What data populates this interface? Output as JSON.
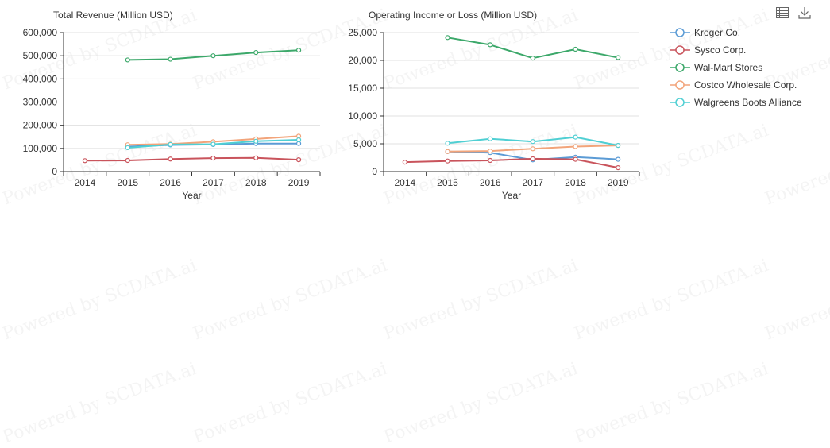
{
  "watermark": "Powered by SCDATA.ai",
  "toolbar": {
    "icons": [
      "data-view-icon",
      "download-icon"
    ]
  },
  "legend": [
    {
      "label": "Kroger Co.",
      "color": "#5b9bd5"
    },
    {
      "label": "Sysco Corp.",
      "color": "#c9545c"
    },
    {
      "label": "Wal-Mart Stores",
      "color": "#3ca86a"
    },
    {
      "label": "Costco Wholesale Corp.",
      "color": "#f2a47a"
    },
    {
      "label": "Walgreens Boots Alliance",
      "color": "#4fcfd3"
    }
  ],
  "chart_data": [
    {
      "type": "line",
      "title": "Total Revenue (Million USD)",
      "xlabel": "Year",
      "ylabel": "",
      "x": [
        "2014",
        "2015",
        "2016",
        "2017",
        "2018",
        "2019"
      ],
      "ylim": [
        0,
        600000
      ],
      "yticks": [
        0,
        100000,
        200000,
        300000,
        400000,
        500000,
        600000
      ],
      "ytick_labels": [
        "0",
        "100,000",
        "200,000",
        "300,000",
        "400,000",
        "500,000",
        "600,000"
      ],
      "grid": true,
      "series": [
        {
          "name": "Kroger Co.",
          "color": "#5b9bd5",
          "values": [
            null,
            108000,
            115000,
            117000,
            121000,
            121000
          ]
        },
        {
          "name": "Sysco Corp.",
          "color": "#c9545c",
          "values": [
            47000,
            48000,
            54000,
            58000,
            59000,
            51000
          ]
        },
        {
          "name": "Wal-Mart Stores",
          "color": "#3ca86a",
          "values": [
            null,
            482000,
            485000,
            500000,
            514000,
            524000
          ]
        },
        {
          "name": "Costco Wholesale Corp.",
          "color": "#f2a47a",
          "values": [
            null,
            116000,
            119000,
            129000,
            141000,
            153000
          ]
        },
        {
          "name": "Walgreens Boots Alliance",
          "color": "#4fcfd3",
          "values": [
            null,
            103000,
            117000,
            118000,
            131000,
            137000
          ]
        }
      ]
    },
    {
      "type": "line",
      "title": "Operating Income or Loss (Million USD)",
      "xlabel": "Year",
      "ylabel": "",
      "x": [
        "2014",
        "2015",
        "2016",
        "2017",
        "2018",
        "2019"
      ],
      "ylim": [
        0,
        25000
      ],
      "yticks": [
        0,
        5000,
        10000,
        15000,
        20000,
        25000
      ],
      "ytick_labels": [
        "0",
        "5,000",
        "10,000",
        "15,000",
        "20,000",
        "25,000"
      ],
      "grid": true,
      "series": [
        {
          "name": "Kroger Co.",
          "color": "#5b9bd5",
          "values": [
            null,
            3600,
            3400,
            2100,
            2600,
            2200
          ]
        },
        {
          "name": "Sysco Corp.",
          "color": "#c9545c",
          "values": [
            1700,
            1900,
            2000,
            2300,
            2200,
            700
          ]
        },
        {
          "name": "Wal-Mart Stores",
          "color": "#3ca86a",
          "values": [
            null,
            24100,
            22800,
            20400,
            22000,
            20500
          ]
        },
        {
          "name": "Costco Wholesale Corp.",
          "color": "#f2a47a",
          "values": [
            null,
            3600,
            3700,
            4100,
            4500,
            4700
          ]
        },
        {
          "name": "Walgreens Boots Alliance",
          "color": "#4fcfd3",
          "values": [
            null,
            5100,
            5900,
            5400,
            6200,
            4700
          ]
        }
      ]
    }
  ]
}
